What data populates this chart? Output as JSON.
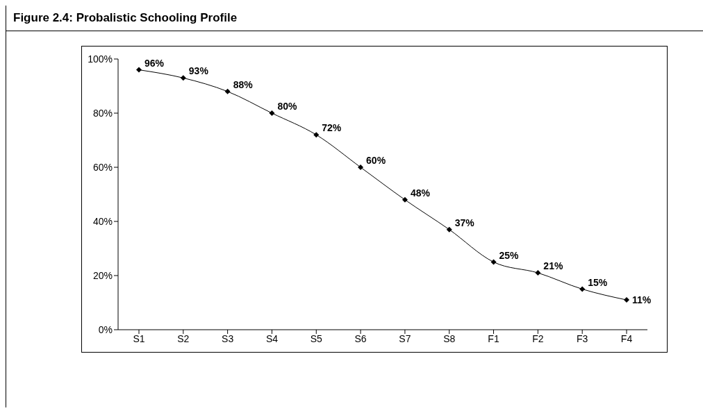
{
  "chart_data": {
    "type": "line",
    "title": "Figure 2.4: Probalistic Schooling Profile",
    "categories": [
      "S1",
      "S2",
      "S3",
      "S4",
      "S5",
      "S6",
      "S7",
      "S8",
      "F1",
      "F2",
      "F3",
      "F4"
    ],
    "series": [
      {
        "color": "#000000",
        "values": [
          96,
          93,
          88,
          80,
          72,
          60,
          48,
          37,
          25,
          21,
          15,
          11
        ],
        "value_labels": [
          "96%",
          "93%",
          "88%",
          "80%",
          "72%",
          "60%",
          "48%",
          "37%",
          "25%",
          "21%",
          "15%",
          "11%"
        ]
      }
    ],
    "ylim": [
      0,
      100
    ],
    "yticks": [
      {
        "value": 0,
        "label": "0%"
      },
      {
        "value": 20,
        "label": "20%"
      },
      {
        "value": 40,
        "label": "40%"
      },
      {
        "value": 60,
        "label": "60%"
      },
      {
        "value": 80,
        "label": "80%"
      },
      {
        "value": 100,
        "label": "100%"
      }
    ],
    "marker": "diamond",
    "line_style": "solid"
  }
}
